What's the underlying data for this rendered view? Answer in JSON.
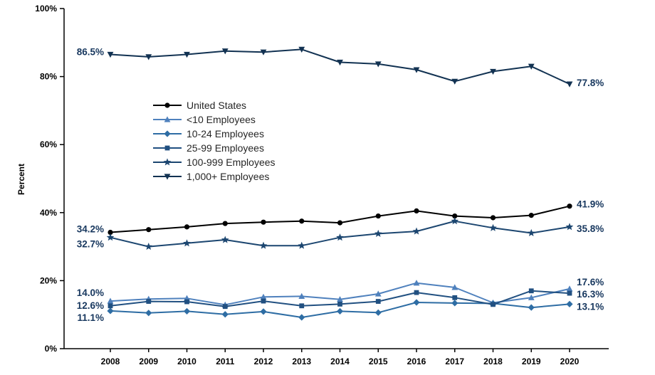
{
  "chart_data": {
    "type": "line",
    "title": "",
    "xlabel": "",
    "ylabel": "Percent",
    "ylim": [
      0,
      100
    ],
    "yticks": [
      0,
      20,
      40,
      60,
      80,
      100
    ],
    "ytick_labels": [
      "0%",
      "20%",
      "40%",
      "60%",
      "80%",
      "100%"
    ],
    "x": [
      2008,
      2009,
      2010,
      2011,
      2012,
      2013,
      2014,
      2015,
      2016,
      2017,
      2018,
      2019,
      2020
    ],
    "grid": false,
    "legend_position": "inside-upper-left",
    "label_color": "#17375e",
    "axis_color": "#000000",
    "series": [
      {
        "name": "United States",
        "marker": "circle",
        "color": "#000000",
        "values": [
          34.2,
          35.0,
          35.8,
          36.8,
          37.2,
          37.5,
          37.0,
          39.0,
          40.5,
          39.0,
          38.5,
          39.2,
          41.9
        ],
        "start_label": "34.2%",
        "end_label": "41.9%",
        "start_dy": -4,
        "end_dy": -2
      },
      {
        "name": "<10 Employees",
        "marker": "triangle-up",
        "color": "#4f81bd",
        "values": [
          14.0,
          14.6,
          14.8,
          12.9,
          15.2,
          15.4,
          14.5,
          16.1,
          19.3,
          18.0,
          13.5,
          15.0,
          17.6
        ],
        "start_label": "14.0%",
        "end_label": "17.6%",
        "start_dy": -11,
        "end_dy": -9
      },
      {
        "name": "10-24 Employees",
        "marker": "diamond",
        "color": "#2e6da4",
        "values": [
          11.1,
          10.5,
          11.0,
          10.1,
          10.9,
          9.2,
          11.0,
          10.6,
          13.6,
          13.4,
          13.3,
          12.1,
          13.1
        ],
        "start_label": "11.1%",
        "end_label": "13.1%",
        "start_dy": 10,
        "end_dy": 4
      },
      {
        "name": "25-99 Employees",
        "marker": "square",
        "color": "#215081",
        "values": [
          12.6,
          13.9,
          13.8,
          12.4,
          14.0,
          12.6,
          13.1,
          13.9,
          16.5,
          15.0,
          13.0,
          17.0,
          16.3
        ],
        "start_label": "12.6%",
        "end_label": "16.3%",
        "start_dy": 0,
        "end_dy": 2
      },
      {
        "name": "100-999 Employees",
        "marker": "star",
        "color": "#1c4670",
        "values": [
          32.7,
          30.0,
          31.0,
          32.0,
          30.3,
          30.3,
          32.7,
          33.8,
          34.5,
          37.5,
          35.5,
          34.0,
          35.8
        ],
        "start_label": "32.7%",
        "end_label": "35.8%",
        "start_dy": 10,
        "end_dy": 3
      },
      {
        "name": "1,000+ Employees",
        "marker": "triangle-down",
        "color": "#123252",
        "values": [
          86.5,
          85.8,
          86.5,
          87.5,
          87.2,
          88.0,
          84.2,
          83.7,
          82.0,
          78.6,
          81.5,
          83.0,
          77.8
        ],
        "start_label": "86.5%",
        "end_label": "77.8%",
        "start_dy": -3,
        "end_dy": -1
      }
    ]
  }
}
